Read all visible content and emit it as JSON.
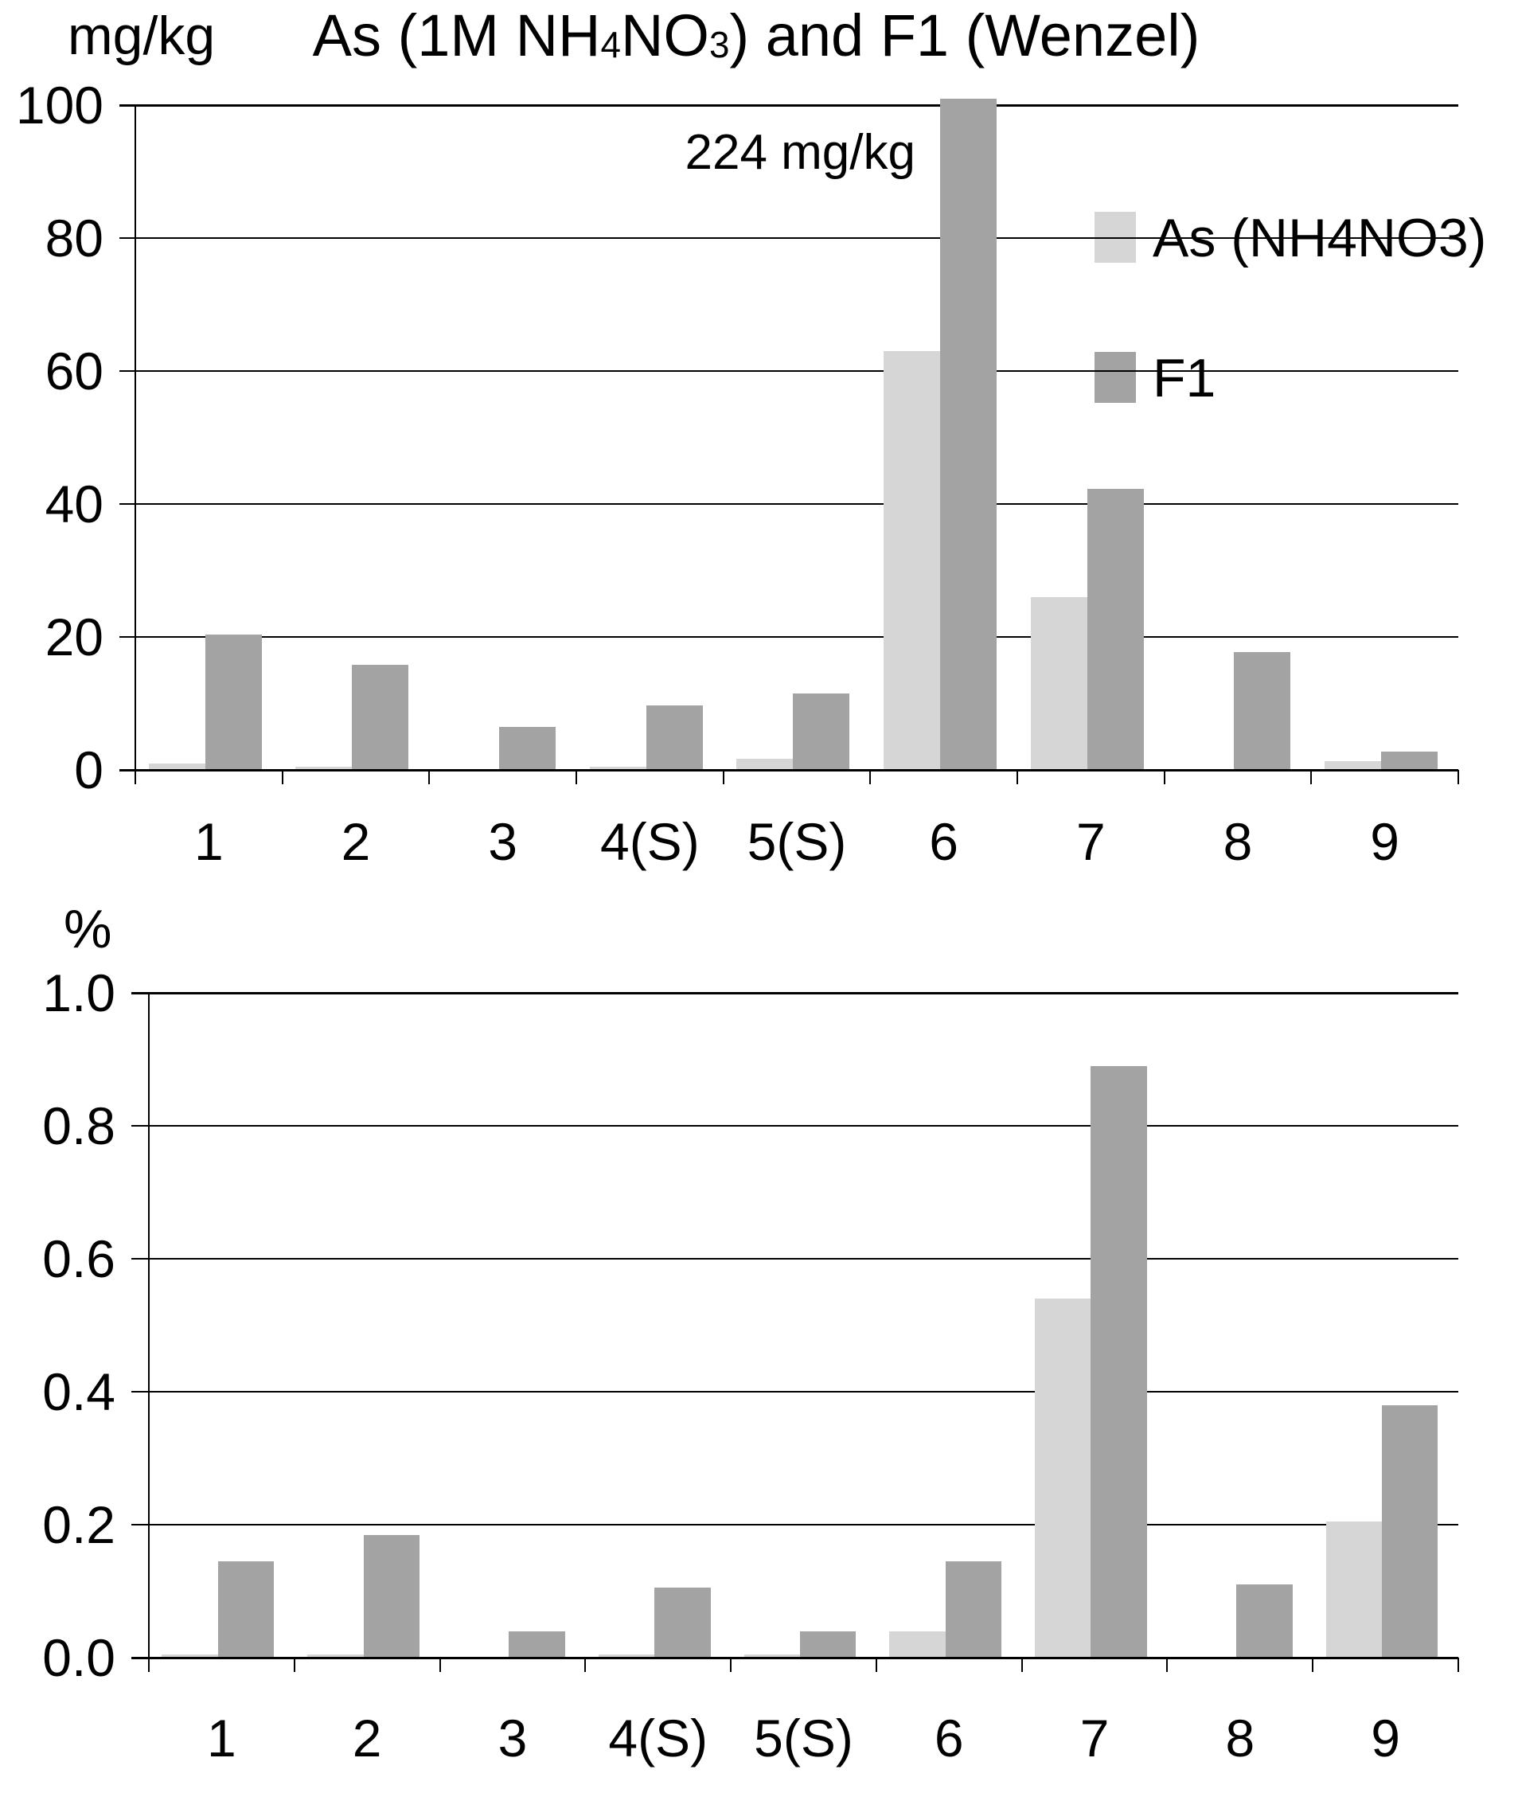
{
  "title": {
    "p1": "As (1M NH",
    "sub1": "4",
    "p2": "NO",
    "sub2": "3",
    "p3": ") and F1 (Wenzel)"
  },
  "legend": {
    "position": "inside-top-right",
    "items": [
      {
        "label": "As (NH4NO3)",
        "color": "#d6d6d6"
      },
      {
        "label": "F1",
        "color": "#a3a3a3"
      }
    ]
  },
  "chart_data": [
    {
      "type": "bar",
      "title": "As (1M NH4NO3) and F1 (Wenzel)",
      "y_axis_corner_label": "mg/kg",
      "xlabel": "",
      "ylabel": "mg/kg",
      "categories": [
        "1",
        "2",
        "3",
        "4(S)",
        "5(S)",
        "6",
        "7",
        "8",
        "9"
      ],
      "series": [
        {
          "name": "As (NH4NO3)",
          "color": "#d6d6d6",
          "values": [
            1.0,
            0.5,
            0,
            0.5,
            1.7,
            63,
            26,
            0,
            1.3
          ]
        },
        {
          "name": "F1",
          "color": "#a3a3a3",
          "values": [
            20.3,
            15.8,
            6.5,
            9.7,
            11.5,
            224,
            42.3,
            17.7,
            2.8
          ]
        }
      ],
      "ylim": [
        0,
        100
      ],
      "yticks": [
        "0",
        "20",
        "40",
        "60",
        "80",
        "100"
      ],
      "annotation": "224 mg/kg",
      "grid": true,
      "legend_position": "inside-top-right"
    },
    {
      "type": "bar",
      "title": "",
      "y_axis_corner_label": "%",
      "xlabel": "",
      "ylabel": "%",
      "categories": [
        "1",
        "2",
        "3",
        "4(S)",
        "5(S)",
        "6",
        "7",
        "8",
        "9"
      ],
      "series": [
        {
          "name": "As (NH4NO3)",
          "color": "#d6d6d6",
          "values": [
            0.005,
            0.005,
            0,
            0.005,
            0.005,
            0.04,
            0.54,
            0,
            0.205
          ]
        },
        {
          "name": "F1",
          "color": "#a3a3a3",
          "values": [
            0.145,
            0.185,
            0.04,
            0.105,
            0.04,
            0.145,
            0.89,
            0.11,
            0.38
          ]
        }
      ],
      "ylim": [
        0,
        1.0
      ],
      "yticks": [
        "0.0",
        "0.2",
        "0.4",
        "0.6",
        "0.8",
        "1.0"
      ],
      "annotation": "",
      "grid": true,
      "legend_position": "none"
    }
  ]
}
